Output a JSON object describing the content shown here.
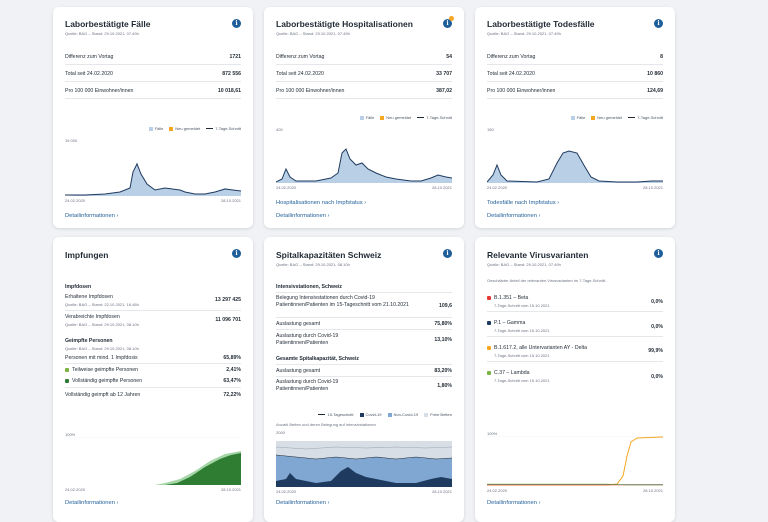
{
  "colors": {
    "accent": "#1f5f99",
    "area": "#b9cfe6",
    "line": "#1f3a5f",
    "green": "#2e7d32",
    "lightgreen": "#7cb342",
    "orange": "#f5a623",
    "grey": "#9aa5b1"
  },
  "cases": {
    "title": "Laborbestätigte Fälle",
    "source": "Quelle: BAG – Stand: 29.10.2021, 07.49h",
    "rows": [
      {
        "label": "Differenz zum Vortag",
        "value": "1721"
      },
      {
        "label": "Total seit 24.02.2020",
        "value": "872 556"
      },
      {
        "label": "Pro 100 000 Einwohner/innen",
        "value": "10 018,61"
      }
    ],
    "legend": [
      "Fälle",
      "Neu gemeldet",
      "7-Tage-Schnitt"
    ],
    "ymax": "15 000",
    "x_start": "24.02.2020",
    "x_end": "28.10.2021",
    "link1": "Detailinformationen ›"
  },
  "hosp": {
    "title": "Laborbestätigte Hospitalisationen",
    "source": "Quelle: BAG – Stand: 29.10.2021, 07.49h",
    "rows": [
      {
        "label": "Differenz zum Vortag",
        "value": "54"
      },
      {
        "label": "Total seit 24.02.2020",
        "value": "33 707"
      },
      {
        "label": "Pro 100 000 Einwohner/innen",
        "value": "387,02"
      }
    ],
    "legend": [
      "Fälle",
      "Neu gemeldet",
      "7-Tage-Schnitt"
    ],
    "ymax": "400",
    "x_start": "24.02.2020",
    "x_end": "28.10.2021",
    "link0": "Hospitalisationen nach Impfstatus ›",
    "link1": "Detailinformationen ›"
  },
  "deaths": {
    "title": "Laborbestätigte Todesfälle",
    "source": "Quelle: BAG – Stand: 29.10.2021, 07.49h",
    "rows": [
      {
        "label": "Differenz zum Vortag",
        "value": "8"
      },
      {
        "label": "Total seit 24.02.2020",
        "value": "10 860"
      },
      {
        "label": "Pro 100 000 Einwohner/innen",
        "value": "124,69"
      }
    ],
    "legend": [
      "Fälle",
      "Neu gemeldet",
      "7-Tage-Schnitt"
    ],
    "ymax": "150",
    "x_start": "24.02.2020",
    "x_end": "28.10.2021",
    "link0": "Todesfälle nach Impfstatus ›",
    "link1": "Detailinformationen ›"
  },
  "vacc": {
    "title": "Impfungen",
    "section1": "Impfdosen",
    "delivered_label": "Erhaltene Impfdosen",
    "delivered_src": "Quelle: BAG – Stand: 22.10.2021, 16.48h",
    "delivered_value": "13 297 425",
    "admin_label": "Verabreichte Impfdosen",
    "admin_src": "Quelle: BAG – Stand: 29.10.2021, 08.10h",
    "admin_value": "11 096 701",
    "section2": "Geimpfte Personen",
    "section2_src": "Quelle: BAG – Stand: 29.10.2021, 08.10h",
    "p1_label": "Personen mit mind. 1 Impfdosis",
    "p1_value": "65,89%",
    "p2_label": "Teilweise geimpfte Personen",
    "p2_value": "2,41%",
    "p3_label": "Vollständig geimpfte Personen",
    "p3_value": "63,47%",
    "p4_label": "Vollständig geimpft ab 12 Jahren",
    "p4_value": "72,22%",
    "ymax": "100%",
    "x_start": "24.02.2020",
    "x_end": "28.10.2021",
    "link1": "Detailinformationen ›"
  },
  "icu": {
    "title": "Spitalkapazitäten Schweiz",
    "source": "Quelle: BAG – Stand: 29.10.2021, 08.10h",
    "section1": "Intensivstationen, Schweiz",
    "r1_label": "Belegung Intensivstationen durch Covid-19 Patientinnen/Patienten im 15-Tageschnitt vom 21.10.2021",
    "r1_value": "109,6",
    "r2_label": "Auslastung gesamt",
    "r2_value": "75,80%",
    "r3_label": "Auslastung durch Covid-19 Patientinnen/Patienten",
    "r3_value": "13,10%",
    "section2": "Gesamte Spitalkapazität, Schweiz",
    "r4_label": "Auslastung gesamt",
    "r4_value": "83,20%",
    "r5_label": "Auslastung durch Covid-19 Patientinnen/Patienten",
    "r5_value": "1,80%",
    "legend": [
      "15-Tageschnitt",
      "Covid-19",
      "Non-Covid-19",
      "Freie Betten"
    ],
    "chart_caption": "Anzahl Betten und deren Belegung auf Intensivstationen",
    "ymax": "2000",
    "x_start": "24.02.2020",
    "x_end": "28.10.2021",
    "link1": "Detailinformationen ›"
  },
  "variants": {
    "title": "Relevante Virusvarianten",
    "source": "Quelle: BAG – Stand: 29.10.2021, 07.49h",
    "desc": "Geschätzter Anteil der relevanten Virusvarianten im 7-Tage-Schnitt.",
    "items": [
      {
        "label": "B.1.351 – Beta",
        "sub": "7-Tage-Schnitt vom 15.10.2021",
        "value": "0,0%",
        "color": "#e53935"
      },
      {
        "label": "P.1 – Gamma",
        "sub": "7-Tage-Schnitt vom 15.10.2021",
        "value": "0,0%",
        "color": "#1f3a5f"
      },
      {
        "label": "B.1.617.2, alle Untervarianten AY - Delta",
        "sub": "7-Tage-Schnitt vom 15.10.2021",
        "value": "99,9%",
        "color": "#f5a623"
      },
      {
        "label": "C.37 – Lambda",
        "sub": "7-Tage-Schnitt vom 15.10.2021",
        "value": "0,0%",
        "color": "#7cb342"
      }
    ],
    "ymax": "100%",
    "x_start": "24.02.2020",
    "x_end": "28.10.2021",
    "link1": "Detailinformationen ›"
  }
}
